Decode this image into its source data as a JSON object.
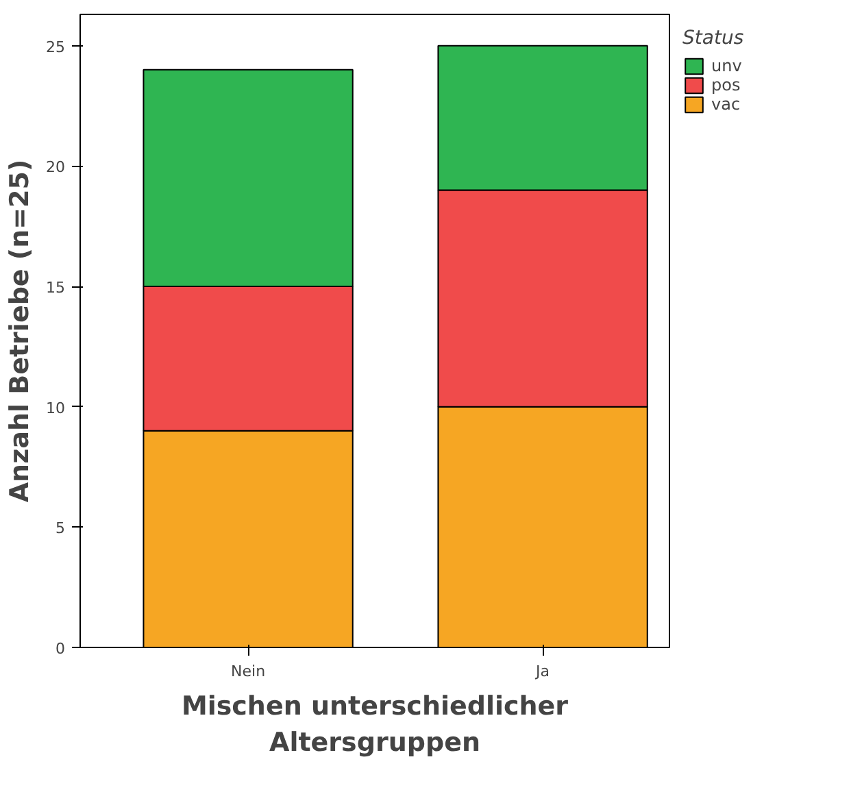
{
  "chart_data": {
    "type": "bar",
    "stacked": true,
    "xlabel": "Mischen unterschiedlicher Altersgruppen",
    "ylabel": "Anzahl Betriebe (n=25)",
    "legend_title": "Status",
    "legend": "right",
    "grid": false,
    "categories": [
      "Nein",
      "Ja"
    ],
    "ylim": [
      0,
      26.3
    ],
    "yticks": [
      0,
      5,
      10,
      15,
      20,
      25
    ],
    "series": [
      {
        "name": "vac",
        "color": "#f6a623",
        "values": [
          9,
          10
        ]
      },
      {
        "name": "pos",
        "color": "#f04b4b",
        "values": [
          6,
          9
        ]
      },
      {
        "name": "unv",
        "color": "#2fb552",
        "values": [
          9,
          6
        ]
      }
    ]
  }
}
